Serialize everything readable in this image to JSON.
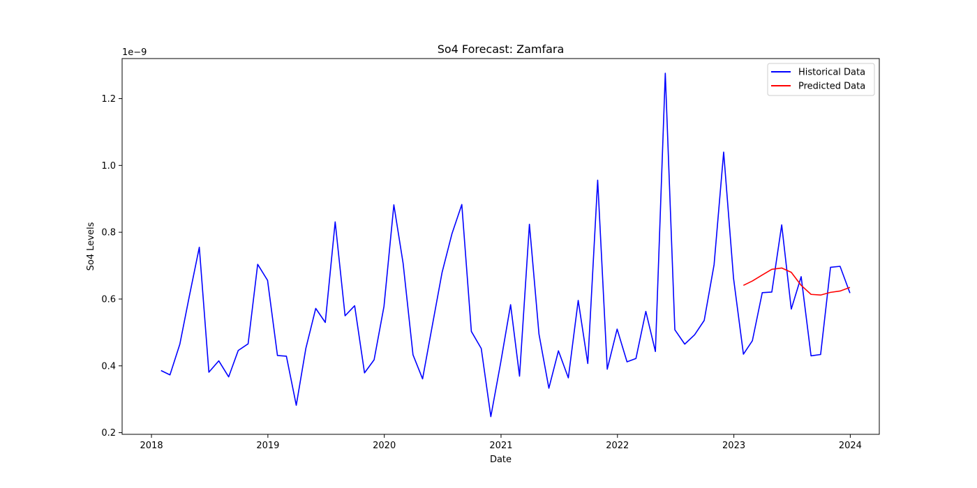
{
  "chart_data": {
    "type": "line",
    "title": "So4 Forecast: Zamfara",
    "xlabel": "Date",
    "ylabel": "So4 Levels",
    "y_offset_text": "1e−9",
    "y_multiplier": 1e-09,
    "xlim": [
      "2017-10-01",
      "2024-04-01"
    ],
    "ylim": [
      0.195,
      1.32
    ],
    "x_ticks": [
      "2018",
      "2019",
      "2020",
      "2021",
      "2022",
      "2023",
      "2024"
    ],
    "x_tick_dates": [
      "2018-01-01",
      "2019-01-01",
      "2020-01-01",
      "2021-01-01",
      "2022-01-01",
      "2023-01-01",
      "2024-01-01"
    ],
    "y_ticks": [
      0.2,
      0.4,
      0.6,
      0.8,
      1.0,
      1.2
    ],
    "y_tick_labels": [
      "0.2",
      "0.4",
      "0.6",
      "0.8",
      "1.0",
      "1.2"
    ],
    "grid": false,
    "legend_position": "top-right",
    "series": [
      {
        "name": "Historical Data",
        "color": "#0000ff",
        "x": [
          "2018-01-31",
          "2018-02-28",
          "2018-03-31",
          "2018-04-30",
          "2018-05-31",
          "2018-06-30",
          "2018-07-31",
          "2018-08-31",
          "2018-09-30",
          "2018-10-31",
          "2018-11-30",
          "2018-12-31",
          "2019-01-31",
          "2019-02-28",
          "2019-03-31",
          "2019-04-30",
          "2019-05-31",
          "2019-06-30",
          "2019-07-31",
          "2019-08-31",
          "2019-09-30",
          "2019-10-31",
          "2019-11-30",
          "2019-12-31",
          "2020-01-31",
          "2020-02-29",
          "2020-03-31",
          "2020-04-30",
          "2020-05-31",
          "2020-06-30",
          "2020-07-31",
          "2020-08-31",
          "2020-09-30",
          "2020-10-31",
          "2020-11-30",
          "2020-12-31",
          "2021-01-31",
          "2021-02-28",
          "2021-03-31",
          "2021-04-30",
          "2021-05-31",
          "2021-06-30",
          "2021-07-31",
          "2021-08-31",
          "2021-09-30",
          "2021-10-31",
          "2021-11-30",
          "2021-12-31",
          "2022-01-31",
          "2022-02-28",
          "2022-03-31",
          "2022-04-30",
          "2022-05-31",
          "2022-06-30",
          "2022-07-31",
          "2022-08-31",
          "2022-09-30",
          "2022-10-31",
          "2022-11-30",
          "2022-12-31",
          "2023-01-31",
          "2023-02-28",
          "2023-03-31",
          "2023-04-30",
          "2023-05-31",
          "2023-06-30",
          "2023-07-31",
          "2023-08-31",
          "2023-09-30",
          "2023-10-31",
          "2023-11-30",
          "2023-12-31"
        ],
        "values": [
          0.386,
          0.373,
          0.465,
          0.61,
          0.755,
          0.381,
          0.415,
          0.367,
          0.446,
          0.466,
          0.704,
          0.656,
          0.431,
          0.429,
          0.282,
          0.452,
          0.572,
          0.53,
          0.831,
          0.55,
          0.58,
          0.379,
          0.418,
          0.578,
          0.882,
          0.707,
          0.433,
          0.361,
          0.523,
          0.679,
          0.795,
          0.883,
          0.503,
          0.452,
          0.248,
          0.41,
          0.583,
          0.369,
          0.824,
          0.495,
          0.333,
          0.445,
          0.364,
          0.596,
          0.407,
          0.956,
          0.39,
          0.51,
          0.412,
          0.422,
          0.563,
          0.443,
          1.276,
          0.508,
          0.465,
          0.493,
          0.536,
          0.703,
          1.04,
          0.662,
          0.435,
          0.475,
          0.619,
          0.621,
          0.822,
          0.57,
          0.667,
          0.43,
          0.434,
          0.695,
          0.698,
          0.618
        ]
      },
      {
        "name": "Predicted Data",
        "color": "#ff0000",
        "x": [
          "2023-01-31",
          "2023-02-28",
          "2023-03-31",
          "2023-04-30",
          "2023-05-31",
          "2023-06-30",
          "2023-07-31",
          "2023-08-31",
          "2023-09-30",
          "2023-10-31",
          "2023-11-30",
          "2023-12-31"
        ],
        "values": [
          0.641,
          0.654,
          0.672,
          0.689,
          0.693,
          0.68,
          0.641,
          0.614,
          0.612,
          0.62,
          0.624,
          0.635
        ]
      }
    ]
  }
}
